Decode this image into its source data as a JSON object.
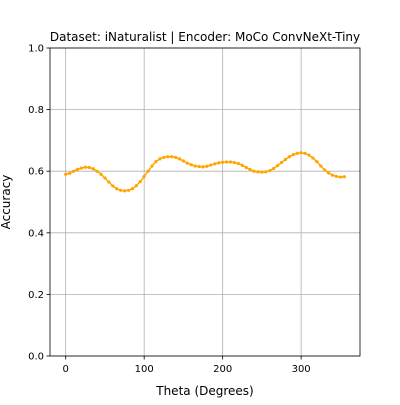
{
  "chart_data": {
    "type": "line",
    "title": "Dataset: iNaturalist | Encoder: MoCo ConvNeXt-Tiny",
    "xlabel": "Theta (Degrees)",
    "ylabel": "Accuracy",
    "xlim": [
      -20,
      375
    ],
    "ylim": [
      0.0,
      1.0
    ],
    "xticks": [
      0,
      100,
      200,
      300
    ],
    "xtick_labels": [
      "0",
      "100",
      "200",
      "300"
    ],
    "yticks": [
      0.0,
      0.2,
      0.4,
      0.6,
      0.8,
      1.0
    ],
    "ytick_labels": [
      "0.0",
      "0.2",
      "0.4",
      "0.6",
      "0.8",
      "1.0"
    ],
    "grid": true,
    "series": [
      {
        "color": "#ffa500",
        "marker": "point",
        "x": [
          0,
          5,
          10,
          15,
          20,
          25,
          30,
          35,
          40,
          45,
          50,
          55,
          60,
          65,
          70,
          75,
          80,
          85,
          90,
          95,
          100,
          105,
          110,
          115,
          120,
          125,
          130,
          135,
          140,
          145,
          150,
          155,
          160,
          165,
          170,
          175,
          180,
          185,
          190,
          195,
          200,
          205,
          210,
          215,
          220,
          225,
          230,
          235,
          240,
          245,
          250,
          255,
          260,
          265,
          270,
          275,
          280,
          285,
          290,
          295,
          300,
          305,
          310,
          315,
          320,
          325,
          330,
          335,
          340,
          345,
          350,
          355
        ],
        "values": [
          0.59,
          0.593,
          0.6,
          0.606,
          0.61,
          0.613,
          0.612,
          0.608,
          0.6,
          0.59,
          0.578,
          0.565,
          0.552,
          0.543,
          0.538,
          0.536,
          0.538,
          0.543,
          0.553,
          0.566,
          0.583,
          0.6,
          0.617,
          0.631,
          0.64,
          0.645,
          0.647,
          0.647,
          0.645,
          0.64,
          0.633,
          0.626,
          0.621,
          0.617,
          0.615,
          0.614,
          0.616,
          0.62,
          0.624,
          0.627,
          0.629,
          0.63,
          0.63,
          0.628,
          0.625,
          0.619,
          0.612,
          0.605,
          0.6,
          0.598,
          0.597,
          0.598,
          0.602,
          0.609,
          0.618,
          0.628,
          0.638,
          0.647,
          0.654,
          0.658,
          0.66,
          0.658,
          0.652,
          0.643,
          0.631,
          0.617,
          0.604,
          0.594,
          0.587,
          0.583,
          0.581,
          0.582
        ]
      }
    ]
  }
}
